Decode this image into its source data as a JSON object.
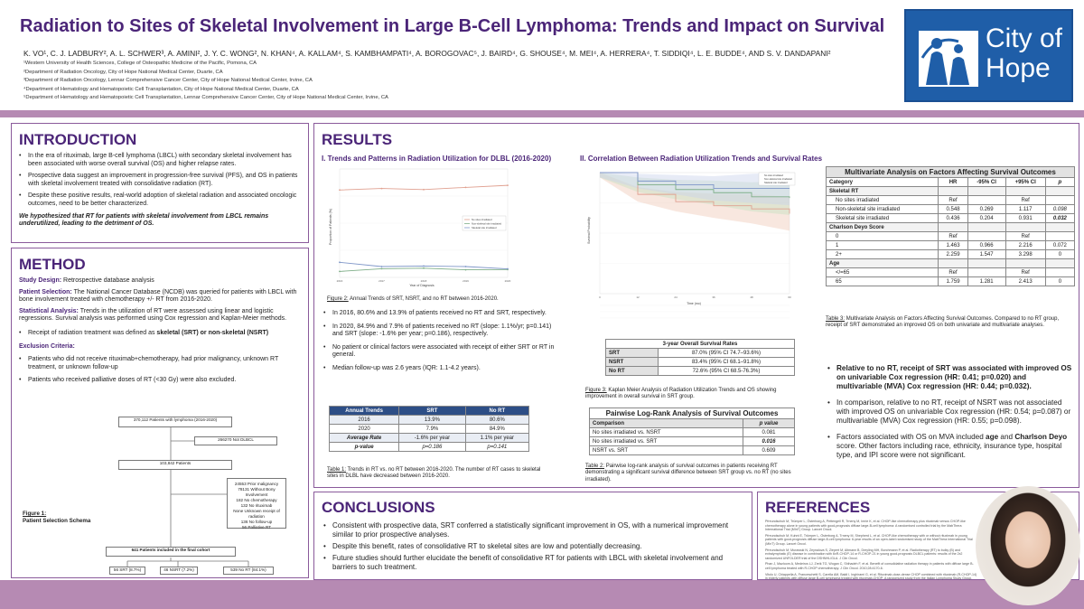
{
  "header": {
    "title": "Radiation to Sites of Skeletal Involvement in Large B-Cell Lymphoma: Trends and Impact on Survival",
    "authors": "K. VO¹, C. J. LADBURY², A. L. SCHWER³, A. AMINI², J. Y. C. WONG², N. KHAN⁴, A. KALLAM⁴, S. KAMBHAMPATI⁴, A. BOROGOVAC⁵, J. BAIRD⁴, G. SHOUSE⁴, M. MEI⁴, A. HERRERA⁴, T. SIDDIQI⁴, L. E. BUDDE⁴, AND S. V. DANDAPANI²",
    "affiliations": [
      "¹Western University of Health Sciences, College of Osteopathic Medicine of the Pacific, Pomona, CA",
      "²Department of Radiation Oncology, City of Hope National Medical Center, Duarte, CA",
      "³Department of Radiation Oncology, Lennar Comprehensive Cancer Center, City of Hope National Medical Center, Irvine, CA",
      "⁴Department of Hematology and Hematopoietic Cell Transplantation, City of Hope National Medical Center, Duarte, CA",
      "⁵Department of Hematology and Hematopoietic Cell Transplantation, Lennar Comprehensive Cancer Center, City of Hope National Medical Center, Irvine, CA"
    ],
    "logo_line1": "City of",
    "logo_line2": "Hope"
  },
  "intro": {
    "heading": "INTRODUCTION",
    "bullets": [
      "In the era of rituximab, large B-cell lymphoma (LBCL) with secondary skeletal involvement has been associated with worse overall survival (OS) and higher relapse rates.",
      "Prospective data suggest an improvement in progression-free survival (PFS), and OS in patients with skeletal involvement treated with consolidative radiation (RT).",
      "Despite these positive results, real-world adoption of skeletal radiation and associated oncologic outcomes, need to be better characterized."
    ],
    "hypothesis": "We hypothesized that RT for patients with skeletal involvement from LBCL remains underutilized, leading to the detriment of OS."
  },
  "method": {
    "heading": "METHOD",
    "design_label": "Study Design:",
    "design": "Retrospective database analysis",
    "selection_label": "Patient Selection:",
    "selection": "The National Cancer Database (NCDB) was queried for patients with LBCL with bone involvement treated with chemotherapy +/- RT from 2016-2020.",
    "stats_label": "Statistical Analysis:",
    "stats": "Trends in the utilization of RT were assessed using linear and logistic regressions. Survival analysis was performed using Cox regression and Kaplan-Meier methods.",
    "receipt_pre": "Receipt of radiation treatment was defined as ",
    "receipt_bold": "skeletal (SRT) or non-skeletal (NSRT)",
    "exclusion_label": "Exclusion Criteria:",
    "exclusions": [
      "Patients who did not receive rituximab+chemotherapy, had prior malignancy, unknown RT treatment, or unknown follow-up",
      "Patients who received palliative doses of RT (<30 Gy) were also excluded."
    ],
    "fig1_label": "Figure 1:",
    "fig1_title": "Patient Selection Schema",
    "flow": {
      "b1": "370,112 Patients with lymphoma (2016-2020)",
      "b2": "266270 Not DLBCL",
      "b3": "103,842 Patients",
      "b4": [
        "24553 Prior malignancy",
        "78131 Without Bony Involvement",
        "182 No chemotherapy",
        "132 No rituximab",
        "None Unknown receipt of radiation",
        "136 No follow-up",
        "56 Palliative RT"
      ],
      "b5": "641 Patients included in the final cohort",
      "b6": "56 SRT (8.7%)",
      "b7": "46 NSRT (7.2%)",
      "b8": "539 No RT (84.1%)"
    }
  },
  "results": {
    "heading": "RESULTS",
    "sec1": "I. Trends and Patterns in Radiation Utilization for DLBL (2016-2020)",
    "sec2": "II. Correlation Between Radiation Utilization Trends and Survival Rates",
    "fig2_label": "Figure 2:",
    "fig2_cap": "Annual Trends of SRT, NSRT, and no RT between 2016-2020.",
    "bullets": [
      "In 2016, 80.6% and 13.9% of patients received no RT and SRT, respectively.",
      "In 2020, 84.9% and 7.9% of patients received no RT (slope: 1.1%/yr; p=0.141) and SRT (slope: -1.6% per year; p=0.186), respectively.",
      "No patient or clinical factors were associated with receipt of either SRT or RT in general.",
      "Median follow-up was 2.6 years (IQR: 1.1-4.2 years)."
    ],
    "table1": {
      "headers": [
        "Annual Trends",
        "SRT",
        "No RT"
      ],
      "rows": [
        [
          "2016",
          "13.9%",
          "80.6%"
        ],
        [
          "2020",
          "7.9%",
          "84.9%"
        ],
        [
          "Average Rate",
          "-1.6% per year",
          "1.1% per year"
        ],
        [
          "p-value",
          "p=0.186",
          "p=0.141"
        ]
      ]
    },
    "table1_label": "Table 1:",
    "table1_cap": "Trends in RT vs. no RT between 2016-2020. The number of RT cases to skeletal sites in DLBL have decreased between 2016-2020.",
    "survival": {
      "title": "3-year Overall Survival Rates",
      "rows": [
        [
          "SRT",
          "87.0% (95% CI 74.7–93.6%)"
        ],
        [
          "NSRT",
          "83.4% (95% CI 68.1–91.8%)"
        ],
        [
          "No RT",
          "72.6% (95% CI 68.5-76.3%)"
        ]
      ]
    },
    "fig3_label": "Figure 3:",
    "fig3_cap": "Kaplan Meier Analysis of Radiation Utilization Trends and OS showing improvement in overall survival in SRT group.",
    "logrank": {
      "title": "Pairwise Log-Rank Analysis of Survival Outcomes",
      "headers": [
        "Comparison",
        "p value"
      ],
      "rows": [
        [
          "No sites irradiated vs. NSRT",
          "0.081"
        ],
        [
          "No sites irradiated vs. SRT",
          "0.016"
        ],
        [
          "NSRT vs. SRT",
          "0.609"
        ]
      ]
    },
    "table2_label": "Table 2:",
    "table2_cap": "Pairwise log-rank analysis of survival outcomes in patients receiving RT demonstrating a significant survival difference between SRT group vs. no RT (no sites irradiated).",
    "mva": {
      "title": "Multivariate Analysis on Factors Affecting Survival Outcomes",
      "headers": [
        "Category",
        "HR",
        "-95% CI",
        "+95% CI",
        "p"
      ],
      "rows": [
        [
          "Skeletal RT",
          "",
          "",
          "",
          ""
        ],
        [
          "No sites irradiated",
          "Ref",
          "",
          "Ref",
          ""
        ],
        [
          "Non-skeletal site irradiated",
          "0.548",
          "0.269",
          "1.117",
          "0.098"
        ],
        [
          "Skeletal site irradiated",
          "0.436",
          "0.204",
          "0.931",
          "0.032"
        ],
        [
          "Charlson Deyo Score",
          "",
          "",
          "",
          ""
        ],
        [
          "0",
          "Ref",
          "",
          "Ref",
          ""
        ],
        [
          "1",
          "1.463",
          "0.966",
          "2.216",
          "0.072"
        ],
        [
          "2+",
          "2.259",
          "1.547",
          "3.298",
          "0"
        ],
        [
          "Age",
          "",
          "",
          "",
          ""
        ],
        [
          "</=65",
          "Ref",
          "",
          "Ref",
          ""
        ],
        [
          "65",
          "1.759",
          "1.281",
          "2.413",
          "0"
        ]
      ]
    },
    "table3_label": "Table 3:",
    "table3_cap": "Multivariate Analysis on Factors Affecting Survival Outcomes. Compared to no RT group, receipt of SRT demonstrated an improved OS on both univariate and multivariate analyses.",
    "key_findings": [
      "Relative to no RT, receipt of SRT was associated with improved OS on univariable Cox regression (HR: 0.41; p=0.020) and multivariable (MVA) Cox regression (HR: 0.44; p=0.032).",
      "In comparison, relative to no RT, receipt of NSRT was not associated with improved OS on univariable Cox regression (HR: 0.54; p=0.087) or multivariable (MVA) Cox regression (HR: 0.55; p=0.098)."
    ],
    "factors_pre": "Factors associated with OS on MVA included ",
    "factors_b1": "age",
    "factors_mid": " and ",
    "factors_b2": "Charlson Deyo",
    "factors_post": " score. Other factors including race, ethnicity, insurance type, hospital type, and IPI score were not significant.",
    "fig2_legend": [
      "No sites irradiated",
      "Non-skeletal site irradiated",
      "Skeletal site irradiated"
    ],
    "fig2_x": "Year of Diagnosis",
    "fig2_y": "Proportion of Patients (%)",
    "fig3_x": "Time (mo)",
    "fig3_y": "Survival Probability"
  },
  "chart_data": [
    {
      "type": "line",
      "title": "Annual Trends of SRT, NSRT, and no RT",
      "xlabel": "Year of Diagnosis",
      "ylabel": "Proportion of Patients (%)",
      "x": [
        2016,
        2017,
        2018,
        2019,
        2020
      ],
      "ylim": [
        0,
        100
      ],
      "series": [
        {
          "name": "No sites irradiated",
          "values": [
            80.6,
            82,
            81,
            83,
            84.9
          ]
        },
        {
          "name": "Non-skeletal site irradiated",
          "values": [
            5.5,
            8,
            8.5,
            7,
            7.2
          ]
        },
        {
          "name": "Skeletal site irradiated",
          "values": [
            13.9,
            10,
            10.5,
            10,
            7.9
          ]
        }
      ]
    },
    {
      "type": "line",
      "title": "Kaplan Meier Analysis",
      "xlabel": "Time (mo)",
      "ylabel": "Survival Probability",
      "x": [
        0,
        12,
        24,
        36,
        48,
        60
      ],
      "ylim": [
        0,
        1
      ],
      "series": [
        {
          "name": "No sites irradiated",
          "values": [
            1,
            0.82,
            0.76,
            0.726,
            0.7,
            0.66
          ]
        },
        {
          "name": "Non-skeletal site irradiated",
          "values": [
            1,
            0.9,
            0.86,
            0.834,
            0.8,
            0.79
          ]
        },
        {
          "name": "Skeletal site irradiated",
          "values": [
            1,
            0.93,
            0.9,
            0.87,
            0.87,
            0.87
          ]
        }
      ]
    }
  ],
  "conclusions": {
    "heading": "CONCLUSIONS",
    "bullets": [
      "Consistent with prospective data, SRT conferred a statistically significant improvement in OS, with a numerical improvement similar to prior prospective analyses.",
      "Despite this benefit, rates of consolidative RT to skeletal sites are low and potentially decreasing.",
      "Future studies should further elucidate the benefit of consolidative RT for patients with LBCL with skeletal involvement and barriers to such treatment."
    ]
  },
  "references": {
    "heading": "REFERENCES",
    "items": [
      "Pfreundschuh M, Trümper L, Österborg A, Pettengell R, Trneny M, Imrie K, et al. CHOP-like chemotherapy plus rituximab versus CHOP-like chemotherapy alone in young patients with good-prognosis diffuse large-B-cell lymphoma: A randomised controlled trial by the MabThera International Trial (MInT) Group. Lancet Oncol.",
      "Pfreundschuh M, Kuhnt E, Trümper L, Österborg A, Trneny M, Shepherd L, et al. CHOP-like chemotherapy with or without rituximab in young patients with good-prognosis diffuse large-B-cell lymphoma: 6-year results of an open-label randomised study of the MabThera International Trial (MInT) Group. Lancet Oncol.",
      "Pfreundschuh M, Murawski N, Zeynalova S, Ziepert M, Altmann B, Dreyling MH, Borchmann P, et al. Radiotherapy (RT) to bulky (B) and extralymphatic (E) disease in combination with 6xR-CHOP-14 or R-CHOP-21 in young good-prognosis DLBCL patients: results of the 2x2 randomized UNFOLDER trial of the DSHNHL/GLA. J Clin Oncol.",
      "Phan J, Mazloom A, Medeiros LJ, Zreik TG, Wogan C, Shihadeh F, et al. Benefit of consolidative radiation therapy in patients with diffuse large B-cell lymphoma treated with R-CHOP chemotherapy. J Clin Oncol. 2010;28:4170-6.",
      "Vitolo U, Chiappella A, Franceschetti S, Carella AM, Baldi I, Inghirami G, et al. Rituximab-dose-dense CHOP combined with rituximab (R-CHOP-14) in elderly patients with diffuse large B-cell lymphoma treated with rituximab-CHOP: A randomized study from the Italian Lymphoma Study Group. Journal of Clinical Oncology. https://doi.org/10.1200/JCO.2012.44.7833"
    ]
  }
}
